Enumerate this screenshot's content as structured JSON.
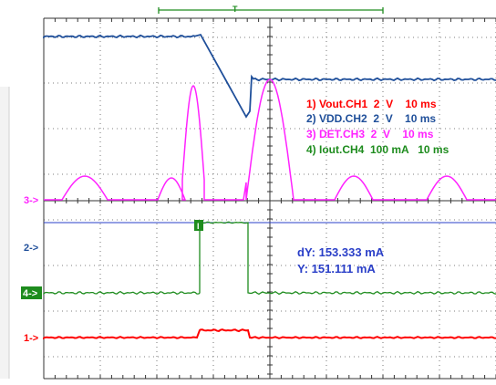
{
  "legend": {
    "ch1": "1) Vout.CH1  2  V    10 ms",
    "ch2": "2) VDD.CH2  2  V    10 ms",
    "ch3": "3) DET.CH3  2  V    10 ms",
    "ch4": "4) Iout.CH4  100 mA   10 ms"
  },
  "cursor": {
    "dy": "dY: 153.333 mA",
    "y": "Y: 151.111 mA",
    "marker": "I"
  },
  "markers": {
    "ch1": "1->",
    "ch2": "2->",
    "ch3": "3->",
    "ch4": "4->"
  },
  "trigger": {
    "letter": "T"
  },
  "colors": {
    "ch1": "#ff0000",
    "ch2": "#1f4f9a",
    "ch3": "#ff22ff",
    "ch4": "#1e8c1e",
    "cursor_line": "#2a3fc8",
    "grid": "#333333",
    "background": "#ffffff"
  }
}
